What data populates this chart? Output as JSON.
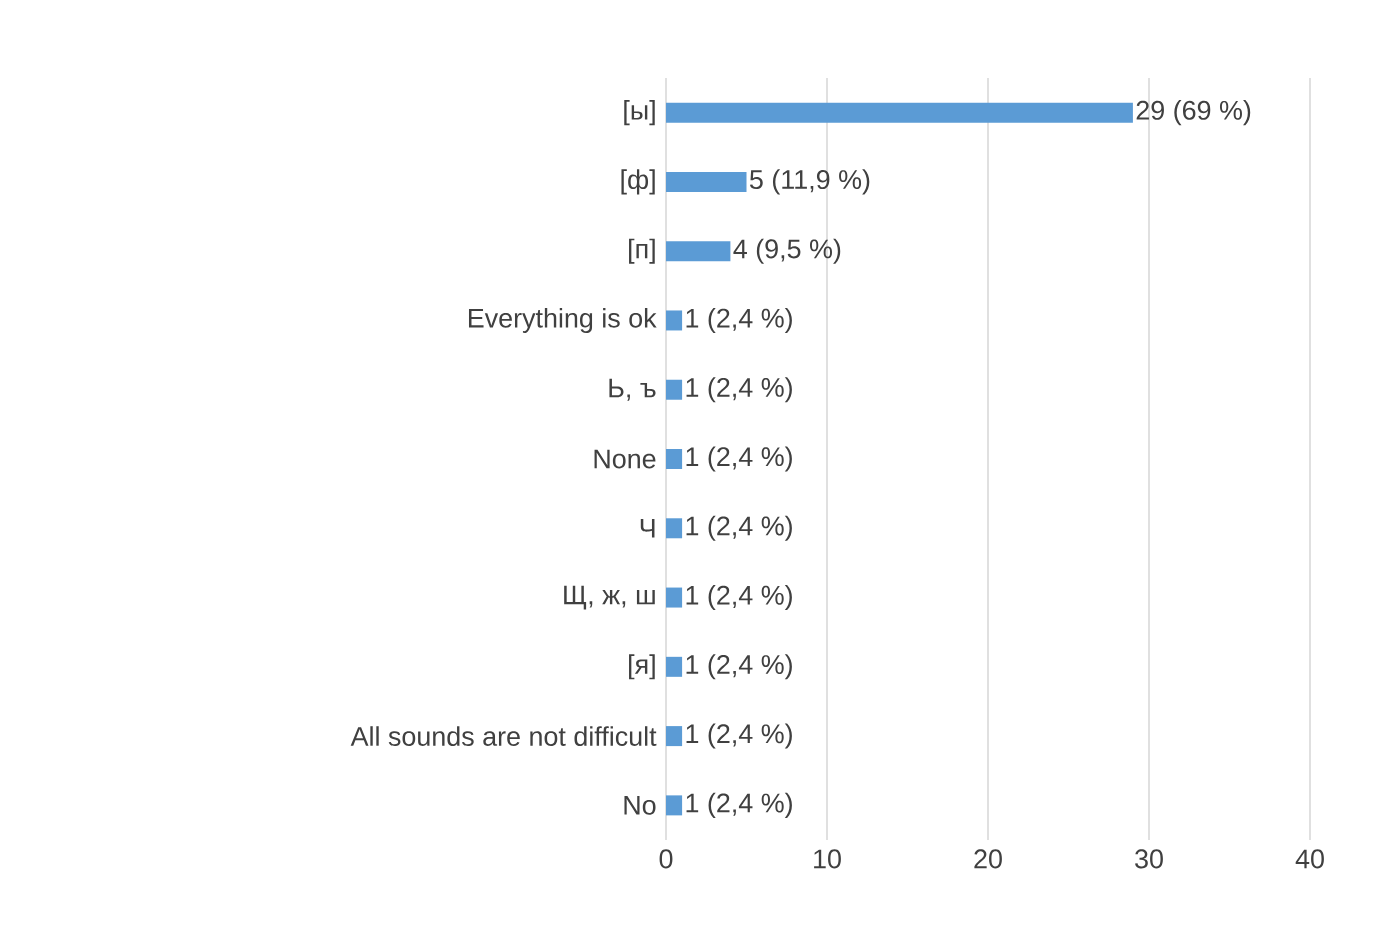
{
  "chart_data": {
    "type": "bar",
    "orientation": "horizontal",
    "categories": [
      "[ы]",
      "[ф]",
      "[п]",
      "Everything is ok",
      "Ь, ъ",
      "None",
      "Ч",
      "Щ, ж, ш",
      "[я]",
      "All sounds are not difficult",
      "No"
    ],
    "values": [
      29,
      5,
      4,
      1,
      1,
      1,
      1,
      1,
      1,
      1,
      1
    ],
    "value_labels": [
      "29 (69 %)",
      "5 (11,9 %)",
      "4 (9,5 %)",
      "1 (2,4 %)",
      "1 (2,4 %)",
      "1 (2,4 %)",
      "1 (2,4 %)",
      "1 (2,4 %)",
      "1 (2,4 %)",
      "1 (2,4 %)",
      "1 (2,4 %)"
    ],
    "color": "#5b9bd5",
    "xlim": [
      0,
      40
    ],
    "xticks": [
      0,
      10,
      20,
      30,
      40
    ],
    "grid": "x"
  }
}
